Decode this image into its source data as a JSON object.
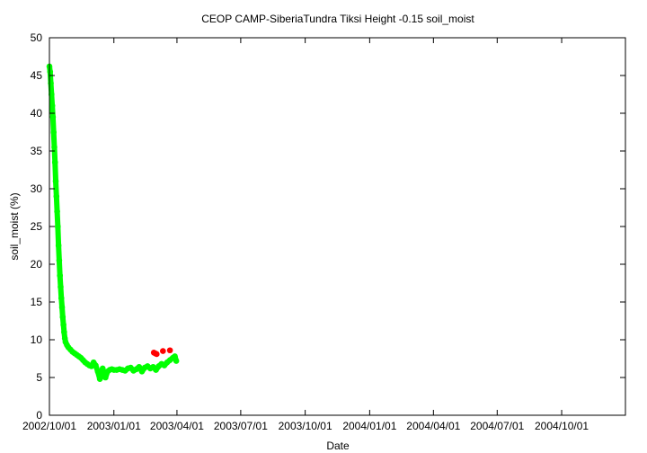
{
  "chart_data": {
    "type": "scatter",
    "title": "CEOP CAMP-SiberiaTundra Tiksi Height -0.15 soil_moist",
    "xlabel": "Date",
    "ylabel": "soil_moist (%)",
    "ylim": [
      0,
      50
    ],
    "xlim": [
      "2002-10-01",
      "2004-12-31"
    ],
    "yticks": [
      0,
      5,
      10,
      15,
      20,
      25,
      30,
      35,
      40,
      45,
      50
    ],
    "xticks": [
      "2002/10/01",
      "2003/01/01",
      "2003/04/01",
      "2003/07/01",
      "2003/10/01",
      "2004/01/01",
      "2004/04/01",
      "2004/07/01",
      "2004/10/01"
    ],
    "grid": false,
    "series": [
      {
        "color": "#00ff00",
        "points": [
          [
            "2002-10-01",
            46.2
          ],
          [
            "2002-10-02",
            45.5
          ],
          [
            "2002-10-03",
            44.0
          ],
          [
            "2002-10-04",
            42.5
          ],
          [
            "2002-10-05",
            41.0
          ],
          [
            "2002-10-06",
            39.5
          ],
          [
            "2002-10-07",
            37.5
          ],
          [
            "2002-10-08",
            35.5
          ],
          [
            "2002-10-09",
            33.5
          ],
          [
            "2002-10-10",
            31.0
          ],
          [
            "2002-10-11",
            29.0
          ],
          [
            "2002-10-12",
            27.0
          ],
          [
            "2002-10-13",
            25.0
          ],
          [
            "2002-10-14",
            22.5
          ],
          [
            "2002-10-15",
            20.5
          ],
          [
            "2002-10-16",
            18.5
          ],
          [
            "2002-10-17",
            17.0
          ],
          [
            "2002-10-18",
            15.5
          ],
          [
            "2002-10-19",
            14.3
          ],
          [
            "2002-10-20",
            13.0
          ],
          [
            "2002-10-21",
            12.0
          ],
          [
            "2002-10-22",
            11.0
          ],
          [
            "2002-10-23",
            10.2
          ],
          [
            "2002-10-24",
            9.7
          ],
          [
            "2002-10-26",
            9.3
          ],
          [
            "2002-10-28",
            9.0
          ],
          [
            "2002-10-31",
            8.7
          ],
          [
            "2002-11-03",
            8.4
          ],
          [
            "2002-11-06",
            8.2
          ],
          [
            "2002-11-09",
            8.0
          ],
          [
            "2002-11-12",
            7.8
          ],
          [
            "2002-11-15",
            7.6
          ],
          [
            "2002-11-18",
            7.3
          ],
          [
            "2002-11-21",
            7.0
          ],
          [
            "2002-11-24",
            6.8
          ],
          [
            "2002-11-27",
            6.6
          ],
          [
            "2002-11-30",
            6.5
          ],
          [
            "2002-12-03",
            7.0
          ],
          [
            "2002-12-06",
            6.6
          ],
          [
            "2002-12-09",
            5.8
          ],
          [
            "2002-12-12",
            4.8
          ],
          [
            "2002-12-14",
            5.5
          ],
          [
            "2002-12-16",
            6.2
          ],
          [
            "2002-12-18",
            5.5
          ],
          [
            "2002-12-20",
            5.0
          ],
          [
            "2002-12-23",
            5.8
          ],
          [
            "2002-12-26",
            6.0
          ],
          [
            "2002-12-29",
            6.1
          ],
          [
            "2003-01-01",
            6.0
          ],
          [
            "2003-01-05",
            6.0
          ],
          [
            "2003-01-09",
            6.1
          ],
          [
            "2003-01-13",
            6.0
          ],
          [
            "2003-01-17",
            5.9
          ],
          [
            "2003-01-21",
            6.2
          ],
          [
            "2003-01-25",
            6.3
          ],
          [
            "2003-01-29",
            5.9
          ],
          [
            "2003-02-02",
            6.1
          ],
          [
            "2003-02-06",
            6.4
          ],
          [
            "2003-02-10",
            5.8
          ],
          [
            "2003-02-14",
            6.3
          ],
          [
            "2003-02-18",
            6.5
          ],
          [
            "2003-02-22",
            6.2
          ],
          [
            "2003-02-26",
            6.4
          ],
          [
            "2003-03-02",
            6.0
          ],
          [
            "2003-03-06",
            6.5
          ],
          [
            "2003-03-10",
            6.8
          ],
          [
            "2003-03-14",
            6.6
          ],
          [
            "2003-03-18",
            7.0
          ],
          [
            "2003-03-22",
            7.3
          ],
          [
            "2003-03-26",
            7.6
          ],
          [
            "2003-03-29",
            7.8
          ],
          [
            "2003-03-31",
            7.2
          ]
        ]
      },
      {
        "color": "#ff0000",
        "points": [
          [
            "2003-02-27",
            8.3
          ],
          [
            "2003-03-01",
            8.2
          ],
          [
            "2003-03-03",
            8.1
          ],
          [
            "2003-03-12",
            8.5
          ],
          [
            "2003-03-22",
            8.6
          ]
        ]
      }
    ]
  }
}
